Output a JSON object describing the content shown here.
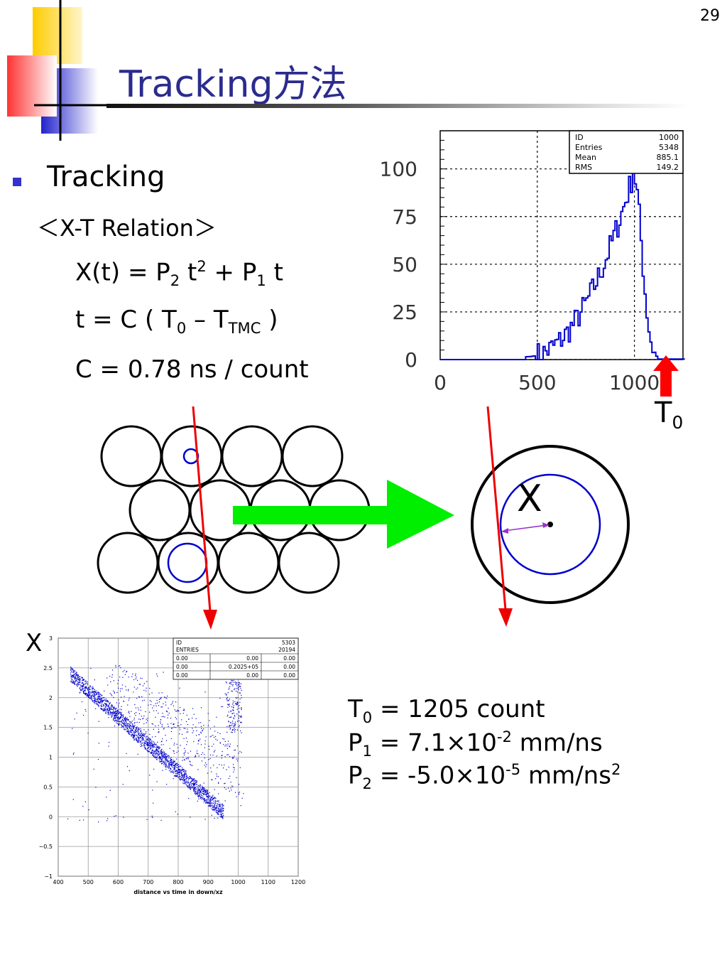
{
  "slide": {
    "number": "29",
    "title": "Tracking方法"
  },
  "content": {
    "bullet": "Tracking",
    "relation_heading": "＜X-T Relation＞",
    "eq1": {
      "a": "X(t) = P",
      "a_sub": "2",
      "b": " t",
      "b_sup": "2",
      "c": " + P",
      "c_sub": "1",
      "d": " t"
    },
    "eq2": {
      "a": "t = C ( T",
      "a_sub": "0",
      "b": " – T",
      "b_sub": "TMC",
      "c": " )"
    },
    "eq3": "C = 0.78 ns / count"
  },
  "params": {
    "t0": {
      "sym": "T",
      "sub": "0",
      "text": " = 1205 count"
    },
    "p1": {
      "sym": "P",
      "sub": "1",
      "text": " = 7.1×10",
      "sup": "-2",
      "unit": " mm/ns"
    },
    "p2": {
      "sym": "P",
      "sub": "2",
      "text": " = -5.0×10",
      "sup": "-5",
      "unit": "  mm/ns",
      "unit_sup": "2"
    }
  },
  "diagram": {
    "t0_label": "T",
    "t0_sub": "0",
    "x_label": "X",
    "colors": {
      "track": "#ee0000",
      "arrow": "#00ee00",
      "drift": "#0000cc",
      "marker": "#ff0000",
      "distance": "#9933cc"
    }
  },
  "chart_data": [
    {
      "type": "histogram",
      "stats": {
        "labels": [
          "ID",
          "Entries",
          "Mean",
          "RMS"
        ],
        "values": [
          "1000",
          "5348",
          "885.1",
          "149.2"
        ]
      },
      "x_ticks": [
        "0",
        "500",
        "1000"
      ],
      "y_ticks": [
        "0",
        "25",
        "50",
        "75",
        "100"
      ],
      "xlim": [
        0,
        1250
      ],
      "ylim": [
        0,
        120
      ],
      "grid": true,
      "color": "#0000cc"
    },
    {
      "type": "scatter",
      "xlabel": "distance vs time in down/xz",
      "ylabel": "X",
      "x_ticks": [
        "400",
        "500",
        "600",
        "700",
        "800",
        "900",
        "1000",
        "1100",
        "1200"
      ],
      "y_ticks": [
        "3",
        "2.5",
        "2",
        "1.5",
        "1",
        "0.5",
        "0",
        "−0.5",
        "−1"
      ],
      "xlim": [
        400,
        1200
      ],
      "ylim": [
        -1,
        3
      ],
      "grid": true,
      "color": "#0000cc",
      "stats_box": {
        "id_label": "ID",
        "id_value": "5303",
        "entries_label": "ENTRIES",
        "entries_value": "20194",
        "row1": [
          "0.00",
          "0.00",
          "0.00"
        ],
        "row2": [
          "0.00",
          "0.2025+05",
          "0.00"
        ],
        "row3": [
          "0.00",
          "0.00",
          "0.00"
        ]
      }
    }
  ]
}
